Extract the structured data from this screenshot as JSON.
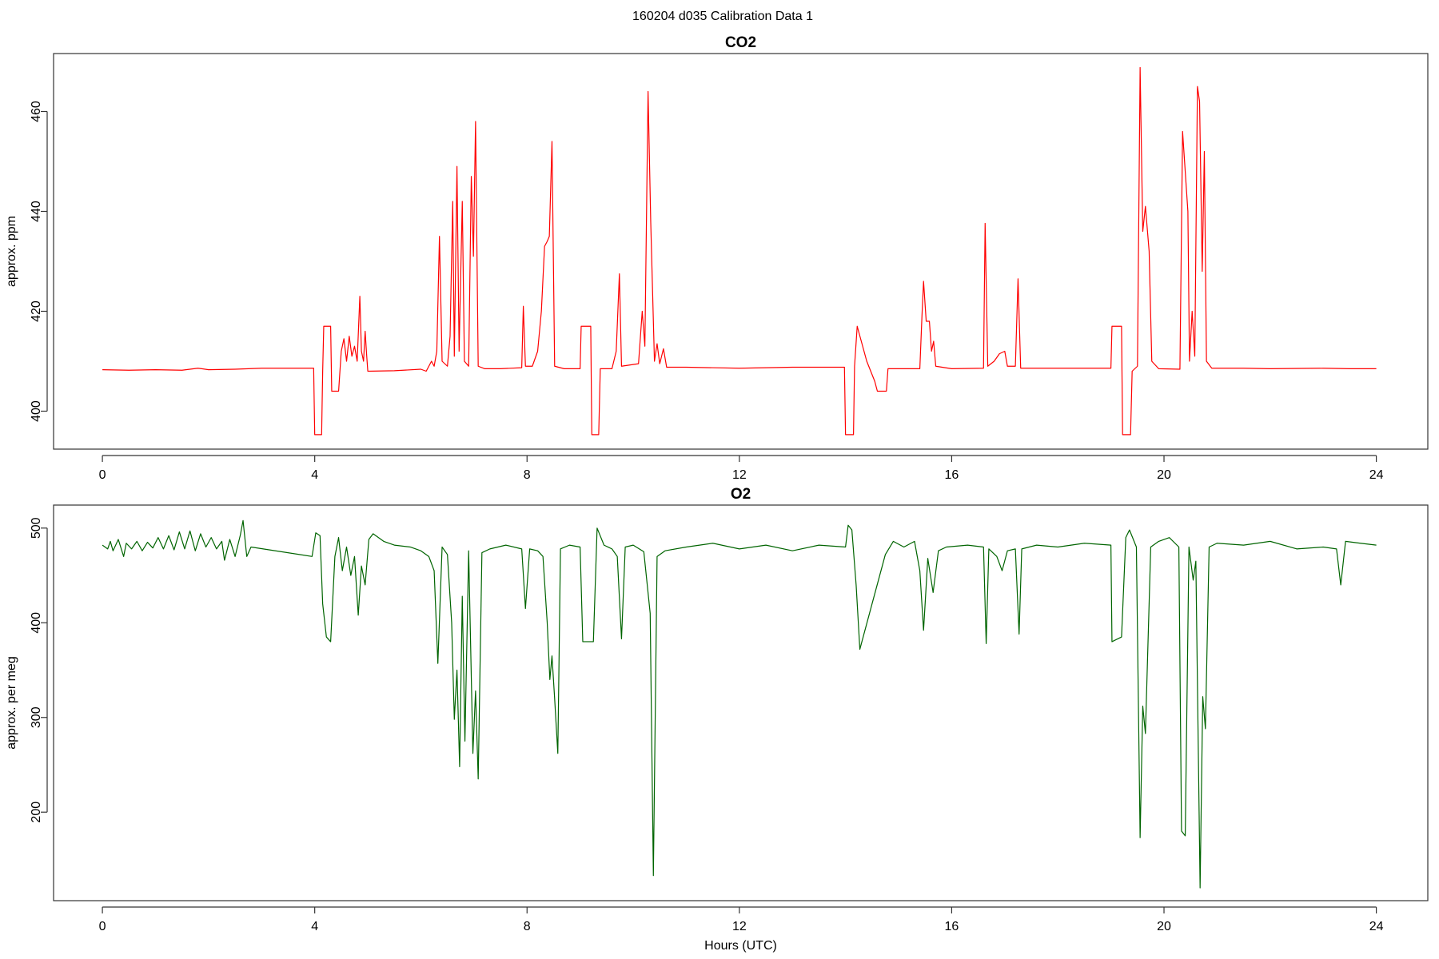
{
  "title": "160204   d035   Calibration Data 1",
  "chart_data": [
    {
      "type": "line",
      "title": "CO2",
      "ylabel": "approx. ppm",
      "color": "#ff0000",
      "xlim": [
        -0.92,
        24.97
      ],
      "ylim": [
        392.4,
        471.6
      ],
      "xticks": [
        0,
        4,
        8,
        12,
        16,
        20,
        24
      ],
      "yticks": [
        400,
        420,
        440,
        460
      ],
      "x": [
        0,
        0.5,
        1,
        1.5,
        1.8,
        2,
        2.5,
        3,
        3.5,
        3.98,
        4.0,
        4.13,
        4.15,
        4.17,
        4.3,
        4.32,
        4.45,
        4.5,
        4.55,
        4.6,
        4.65,
        4.7,
        4.75,
        4.8,
        4.85,
        4.88,
        4.92,
        4.95,
        4.98,
        5.0,
        5.5,
        6.0,
        6.1,
        6.2,
        6.25,
        6.3,
        6.35,
        6.4,
        6.5,
        6.55,
        6.6,
        6.63,
        6.68,
        6.72,
        6.78,
        6.82,
        6.9,
        6.95,
        6.99,
        7.03,
        7.08,
        7.2,
        7.5,
        7.9,
        7.93,
        7.97,
        8.1,
        8.2,
        8.27,
        8.33,
        8.38,
        8.42,
        8.47,
        8.52,
        8.7,
        9.0,
        9.02,
        9.2,
        9.22,
        9.35,
        9.38,
        9.6,
        9.68,
        9.74,
        9.78,
        10.1,
        10.17,
        10.22,
        10.28,
        10.33,
        10.4,
        10.45,
        10.5,
        10.57,
        10.63,
        11,
        12,
        13,
        13.98,
        14.0,
        14.15,
        14.17,
        14.22,
        14.4,
        14.55,
        14.6,
        14.77,
        14.8,
        15.4,
        15.44,
        15.47,
        15.52,
        15.58,
        15.62,
        15.66,
        15.7,
        16,
        16.6,
        16.63,
        16.68,
        16.8,
        16.9,
        17.0,
        17.05,
        17.2,
        17.25,
        17.3,
        18,
        19.0,
        19.02,
        19.2,
        19.22,
        19.37,
        19.4,
        19.5,
        19.55,
        19.6,
        19.65,
        19.72,
        19.77,
        19.9,
        20.3,
        20.35,
        20.45,
        20.48,
        20.53,
        20.58,
        20.63,
        20.67,
        20.72,
        20.76,
        20.8,
        20.9,
        21.5,
        22,
        23,
        23.5,
        24
      ],
      "values": [
        408.3,
        408.2,
        408.3,
        408.2,
        408.6,
        408.3,
        408.4,
        408.6,
        408.6,
        408.6,
        395.3,
        395.3,
        408,
        417,
        417,
        404,
        404,
        412,
        414.5,
        410,
        415,
        411,
        413,
        410,
        423,
        412,
        410,
        416,
        411,
        408,
        408.1,
        408.4,
        408,
        410,
        409,
        412,
        435,
        410,
        409,
        415,
        442,
        411,
        449,
        412,
        442,
        410,
        409,
        447,
        431,
        458,
        409,
        408.5,
        408.5,
        408.7,
        421,
        409,
        409,
        412,
        420,
        433,
        434,
        435,
        454,
        409,
        408.5,
        408.5,
        417,
        417,
        395.3,
        395.3,
        408.5,
        408.5,
        412,
        427.5,
        409,
        409.5,
        420,
        413,
        464,
        438,
        410,
        413.5,
        409.5,
        412.5,
        408.8,
        408.8,
        408.6,
        408.8,
        408.8,
        395.3,
        395.3,
        409,
        417,
        410,
        406,
        404,
        404,
        408.5,
        408.5,
        419,
        426,
        418,
        418,
        412,
        414,
        409,
        408.5,
        408.6,
        437.6,
        409,
        410,
        411.5,
        412,
        409,
        409,
        426.5,
        408.6,
        408.6,
        408.6,
        417,
        417,
        395.3,
        395.3,
        408,
        409,
        468.8,
        436,
        441,
        432,
        410,
        408.5,
        408.4,
        456,
        440,
        410,
        420,
        411,
        465,
        462,
        428,
        452,
        410,
        408.6,
        408.6,
        408.5,
        408.6,
        408.5,
        408.5
      ]
    },
    {
      "type": "line",
      "title": "O2",
      "ylabel": "approx. per meg",
      "xlabel": "Hours (UTC)",
      "color": "#006400",
      "xlim": [
        -0.92,
        24.97
      ],
      "ylim": [
        106.5,
        524.3
      ],
      "xticks": [
        0,
        4,
        8,
        12,
        16,
        20,
        24
      ],
      "yticks": [
        200,
        300,
        400,
        500
      ],
      "x": [
        0,
        0.1,
        0.15,
        0.2,
        0.3,
        0.4,
        0.45,
        0.55,
        0.65,
        0.75,
        0.85,
        0.95,
        1.05,
        1.15,
        1.25,
        1.35,
        1.45,
        1.55,
        1.65,
        1.75,
        1.85,
        1.95,
        2.05,
        2.15,
        2.25,
        2.3,
        2.4,
        2.5,
        2.6,
        2.65,
        2.72,
        2.8,
        3.95,
        4.02,
        4.1,
        4.15,
        4.22,
        4.3,
        4.38,
        4.45,
        4.52,
        4.6,
        4.68,
        4.75,
        4.82,
        4.88,
        4.95,
        5.02,
        5.1,
        5.3,
        5.5,
        5.8,
        6.0,
        6.15,
        6.25,
        6.32,
        6.4,
        6.5,
        6.58,
        6.63,
        6.68,
        6.73,
        6.78,
        6.83,
        6.9,
        6.98,
        7.03,
        7.08,
        7.15,
        7.3,
        7.6,
        7.9,
        7.97,
        8.05,
        8.2,
        8.3,
        8.38,
        8.43,
        8.47,
        8.52,
        8.58,
        8.63,
        8.8,
        9.0,
        9.05,
        9.25,
        9.32,
        9.45,
        9.6,
        9.7,
        9.78,
        9.85,
        10.0,
        10.2,
        10.32,
        10.38,
        10.45,
        10.6,
        11,
        11.5,
        12,
        12.5,
        13,
        13.5,
        14.0,
        14.05,
        14.12,
        14.2,
        14.27,
        14.5,
        14.75,
        14.9,
        15.1,
        15.3,
        15.4,
        15.47,
        15.55,
        15.65,
        15.75,
        15.9,
        16.3,
        16.6,
        16.65,
        16.7,
        16.85,
        16.95,
        17.05,
        17.2,
        17.27,
        17.32,
        17.6,
        18,
        18.5,
        19.0,
        19.02,
        19.2,
        19.28,
        19.35,
        19.48,
        19.55,
        19.6,
        19.65,
        19.75,
        19.9,
        20.1,
        20.28,
        20.33,
        20.4,
        20.47,
        20.55,
        20.6,
        20.68,
        20.73,
        20.78,
        20.85,
        21,
        21.5,
        22,
        22.5,
        23,
        23.25,
        23.33,
        23.42,
        23.7,
        24
      ],
      "values": [
        482,
        478,
        486,
        476,
        488,
        470,
        484,
        478,
        486,
        476,
        485,
        479,
        490,
        478,
        492,
        477,
        496,
        478,
        497,
        476,
        494,
        480,
        490,
        478,
        486,
        466,
        488,
        470,
        493,
        508,
        470,
        480,
        470,
        495,
        492,
        420,
        385,
        380,
        470,
        490,
        455,
        480,
        450,
        470,
        408,
        460,
        440,
        488,
        494,
        486,
        482,
        480,
        476,
        470,
        455,
        357,
        480,
        472,
        400,
        298,
        350,
        248,
        428,
        275,
        476,
        262,
        328,
        235,
        474,
        478,
        482,
        478,
        415,
        478,
        476,
        470,
        400,
        340,
        365,
        320,
        262,
        478,
        482,
        480,
        380,
        380,
        500,
        482,
        478,
        470,
        383,
        480,
        482,
        475,
        410,
        133,
        470,
        476,
        480,
        484,
        478,
        482,
        476,
        482,
        480,
        503,
        498,
        440,
        372,
        420,
        472,
        486,
        480,
        486,
        455,
        392,
        468,
        432,
        476,
        480,
        482,
        480,
        378,
        478,
        470,
        455,
        476,
        478,
        388,
        478,
        482,
        480,
        484,
        482,
        380,
        385,
        490,
        498,
        480,
        173,
        312,
        283,
        480,
        486,
        490,
        480,
        180,
        175,
        480,
        445,
        465,
        120,
        322,
        288,
        480,
        484,
        482,
        486,
        478,
        480,
        478,
        440,
        486,
        484,
        482
      ]
    }
  ]
}
